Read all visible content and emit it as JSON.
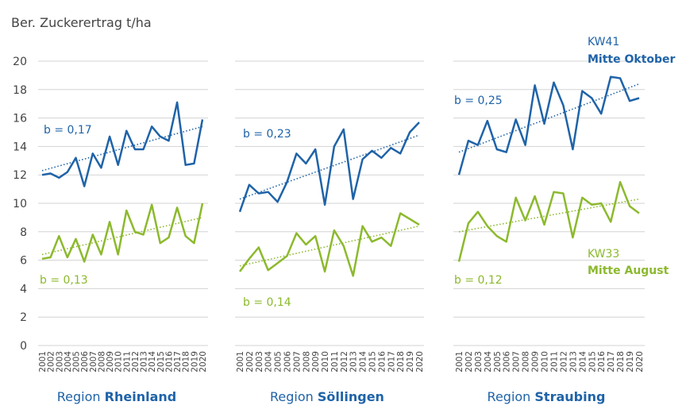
{
  "title": "Ber. Zuckerertrag t/ha",
  "colors": {
    "blue": "#1f63a8",
    "green": "#8cb92d",
    "grid": "#d3d3d3",
    "text": "#444444",
    "region_title": "#1f63a8"
  },
  "legend": {
    "kw41_code": "KW41",
    "kw41_name": "Mitte Oktober",
    "kw33_code": "KW33",
    "kw33_name": "Mitte August"
  },
  "chart_data": {
    "type": "line",
    "y_ticks": [
      "0",
      "2",
      "4",
      "6",
      "8",
      "10",
      "12",
      "14",
      "16",
      "18",
      "20"
    ],
    "ylim": [
      0,
      20
    ],
    "years": [
      "2001",
      "2002",
      "2003",
      "2004",
      "2005",
      "2006",
      "2007",
      "2008",
      "2009",
      "2010",
      "2011",
      "2012",
      "2013",
      "2014",
      "2015",
      "2016",
      "2017",
      "2018",
      "2019",
      "2020"
    ],
    "grid": "horizontal",
    "panels": [
      {
        "region_prefix": "Region ",
        "region_name": "Rheinland",
        "series": [
          {
            "name": "KW41",
            "color": "#1f63a8",
            "values": [
              12.0,
              12.1,
              11.8,
              12.2,
              13.2,
              11.2,
              13.5,
              12.5,
              14.7,
              12.7,
              15.1,
              13.8,
              13.8,
              15.4,
              14.7,
              14.4,
              17.1,
              12.7,
              12.8,
              15.9
            ],
            "trend": [
              12.3,
              15.4
            ],
            "b_label": "b = 0,17"
          },
          {
            "name": "KW33",
            "color": "#8cb92d",
            "values": [
              6.1,
              6.2,
              7.7,
              6.2,
              7.5,
              5.9,
              7.8,
              6.4,
              8.7,
              6.4,
              9.5,
              8.0,
              7.8,
              9.9,
              7.2,
              7.6,
              9.7,
              7.7,
              7.2,
              10.0
            ],
            "trend": [
              6.4,
              9.0
            ],
            "b_label": "b = 0,13"
          }
        ]
      },
      {
        "region_prefix": "Region ",
        "region_name": "Söllingen",
        "series": [
          {
            "name": "KW41",
            "color": "#1f63a8",
            "values": [
              9.4,
              11.3,
              10.7,
              10.8,
              10.1,
              11.5,
              13.5,
              12.8,
              13.8,
              9.9,
              14.0,
              15.2,
              10.3,
              13.1,
              13.7,
              13.2,
              13.9,
              13.5,
              15.0,
              15.7
            ],
            "trend": [
              10.3,
              14.8
            ],
            "b_label": "b = 0,23"
          },
          {
            "name": "KW33",
            "color": "#8cb92d",
            "values": [
              5.2,
              6.1,
              6.9,
              5.3,
              5.8,
              6.3,
              7.9,
              7.1,
              7.7,
              5.2,
              8.1,
              7.0,
              4.9,
              8.4,
              7.3,
              7.6,
              7.0,
              9.3,
              8.9,
              8.5
            ],
            "trend": [
              5.6,
              8.4
            ],
            "b_label": "b = 0,14"
          }
        ]
      },
      {
        "region_prefix": "Region ",
        "region_name": "Straubing",
        "series": [
          {
            "name": "KW41",
            "color": "#1f63a8",
            "values": [
              12.0,
              14.4,
              14.1,
              15.8,
              13.8,
              13.6,
              15.9,
              14.1,
              18.3,
              15.6,
              18.5,
              16.9,
              13.8,
              17.9,
              17.4,
              16.3,
              18.9,
              18.8,
              17.2,
              17.4
            ],
            "trend": [
              13.6,
              18.4
            ],
            "b_label": "b = 0,25"
          },
          {
            "name": "KW33",
            "color": "#8cb92d",
            "values": [
              5.9,
              8.6,
              9.4,
              8.4,
              7.7,
              7.3,
              10.4,
              8.8,
              10.5,
              8.5,
              10.8,
              10.7,
              7.6,
              10.4,
              9.9,
              10.0,
              8.7,
              11.5,
              9.8,
              9.3
            ],
            "trend": [
              8.0,
              10.3
            ],
            "b_label": "b = 0,12"
          }
        ]
      }
    ]
  }
}
